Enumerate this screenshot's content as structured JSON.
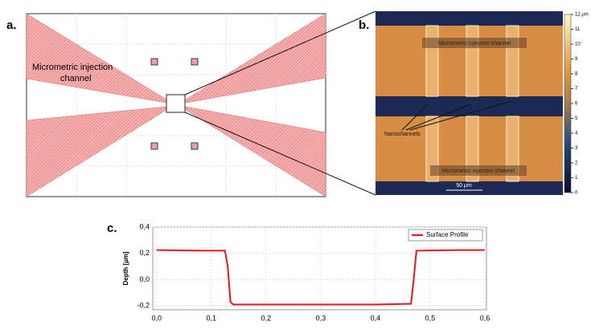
{
  "panels": {
    "a": {
      "label": "a.",
      "channel_label": [
        "Micrometric injection",
        "channel"
      ]
    },
    "b": {
      "label": "b.",
      "top_label": "Micrometric injection channel",
      "bottom_label": "Micrometric injection channel",
      "nanochannels_label": "Nanochannels",
      "scale_bar": "50 µm",
      "colorbar": {
        "ticks": [
          0,
          1,
          2,
          3,
          4,
          5,
          6,
          7,
          8,
          9,
          10,
          11,
          {
            "value": 12,
            "label": "12 µm"
          }
        ]
      }
    },
    "c": {
      "label": "c."
    }
  },
  "chart_data": {
    "type": "line",
    "ylabel": "Depth [µm]",
    "x": [
      0,
      0.05,
      0.1,
      0.125,
      0.13,
      0.135,
      0.14,
      0.2,
      0.3,
      0.4,
      0.465,
      0.47,
      0.475,
      0.5,
      0.55,
      0.6
    ],
    "series": [
      {
        "name": "Surface Profile",
        "color": "#e8141b",
        "values": [
          0.225,
          0.222,
          0.22,
          0.22,
          0.1,
          -0.17,
          -0.19,
          -0.19,
          -0.19,
          -0.19,
          -0.185,
          0.0,
          0.22,
          0.222,
          0.225,
          0.225
        ]
      }
    ],
    "xlim": [
      -0.007,
      0.603
    ],
    "ylim": [
      -0.23,
      0.4
    ],
    "xticks": [
      {
        "value": 0,
        "label": "0,0"
      },
      {
        "value": 0.1,
        "label": "0,1"
      },
      {
        "value": 0.2,
        "label": "0,2"
      },
      {
        "value": 0.3,
        "label": "0,3"
      },
      {
        "value": 0.4,
        "label": "0,4"
      },
      {
        "value": 0.5,
        "label": "0,5"
      },
      {
        "value": 0.6,
        "label": "0,6"
      }
    ],
    "yticks": [
      {
        "value": -0.2,
        "label": "-0,2"
      },
      {
        "value": 0,
        "label": "0,0"
      },
      {
        "value": 0.2,
        "label": "0,2"
      },
      {
        "value": 0.4,
        "label": "0,4"
      }
    ],
    "grid": true,
    "legend": "upper right"
  }
}
